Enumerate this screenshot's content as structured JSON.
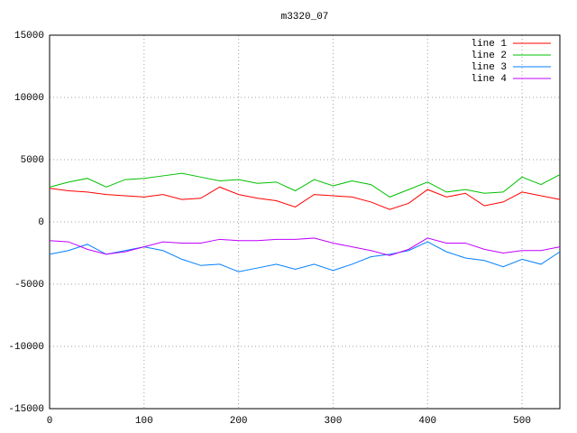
{
  "chart_data": {
    "type": "line",
    "title": "m3320_07",
    "x": [
      0,
      20,
      40,
      60,
      80,
      100,
      120,
      140,
      160,
      180,
      200,
      220,
      240,
      260,
      280,
      300,
      320,
      340,
      360,
      380,
      400,
      420,
      440,
      460,
      480,
      500,
      520,
      540
    ],
    "series": [
      {
        "name": "line 1",
        "color": "#ff0000",
        "values": [
          2700,
          2500,
          2400,
          2200,
          2100,
          2000,
          2200,
          1800,
          1900,
          2800,
          2200,
          1900,
          1700,
          1200,
          2200,
          2100,
          2000,
          1600,
          1000,
          1500,
          2600,
          2000,
          2300,
          1300,
          1600,
          2400,
          2100,
          1800
        ]
      },
      {
        "name": "line 2",
        "color": "#00c000",
        "values": [
          2800,
          3200,
          3500,
          2800,
          3400,
          3500,
          3700,
          3900,
          3600,
          3300,
          3400,
          3100,
          3200,
          2500,
          3400,
          2900,
          3300,
          3000,
          2000,
          2600,
          3200,
          2400,
          2600,
          2300,
          2400,
          3600,
          3000,
          3800
        ]
      },
      {
        "name": "line 3",
        "color": "#0080ff",
        "values": [
          -2600,
          -2300,
          -1800,
          -2600,
          -2300,
          -2000,
          -2300,
          -3000,
          -3500,
          -3400,
          -4000,
          -3700,
          -3400,
          -3800,
          -3400,
          -3900,
          -3400,
          -2800,
          -2600,
          -2300,
          -1600,
          -2400,
          -2900,
          -3100,
          -3600,
          -3000,
          -3400,
          -2400
        ]
      },
      {
        "name": "line 4",
        "color": "#c000ff",
        "values": [
          -1500,
          -1600,
          -2200,
          -2600,
          -2400,
          -2000,
          -1600,
          -1700,
          -1700,
          -1400,
          -1500,
          -1500,
          -1400,
          -1400,
          -1300,
          -1700,
          -2000,
          -2300,
          -2700,
          -2200,
          -1300,
          -1700,
          -1700,
          -2200,
          -2500,
          -2300,
          -2300,
          -2000
        ]
      }
    ],
    "xlim": [
      0,
      540
    ],
    "xticks": [
      0,
      100,
      200,
      300,
      400,
      500
    ],
    "ylim": [
      -15000,
      15000
    ],
    "yticks": [
      -15000,
      -10000,
      -5000,
      0,
      5000,
      10000,
      15000
    ],
    "grid": true,
    "legend": "top-right"
  }
}
